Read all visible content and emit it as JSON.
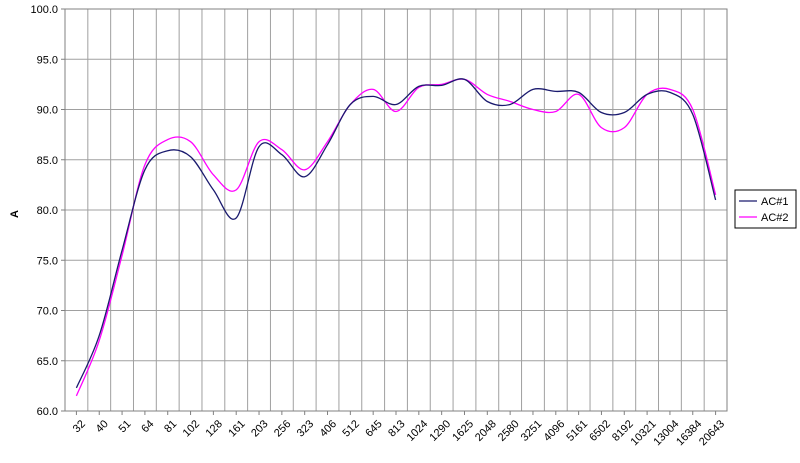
{
  "chart_data": {
    "type": "line",
    "title": "",
    "xlabel": "",
    "ylabel": "A",
    "ylim": [
      60.0,
      100.0
    ],
    "yticks": [
      "60.0",
      "65.0",
      "70.0",
      "75.0",
      "80.0",
      "85.0",
      "90.0",
      "95.0",
      "100.0"
    ],
    "grid": true,
    "legend_position": "right",
    "x": [
      "32",
      "40",
      "51",
      "64",
      "81",
      "102",
      "128",
      "161",
      "203",
      "256",
      "323",
      "406",
      "512",
      "645",
      "813",
      "1024",
      "1290",
      "1625",
      "2048",
      "2580",
      "3251",
      "4096",
      "5161",
      "6502",
      "8192",
      "10321",
      "13004",
      "16384",
      "20643"
    ],
    "series": [
      {
        "name": "AC#1",
        "color": "#1a1a6e",
        "values": [
          62.3,
          67.5,
          76.0,
          84.0,
          85.9,
          85.3,
          82.0,
          79.2,
          86.3,
          85.5,
          83.3,
          86.5,
          90.5,
          91.3,
          90.5,
          92.3,
          92.4,
          93.0,
          90.8,
          90.5,
          92.0,
          91.8,
          91.7,
          89.7,
          89.7,
          91.5,
          91.7,
          89.5,
          81.0
        ]
      },
      {
        "name": "AC#2",
        "color": "#ff00ff",
        "values": [
          61.5,
          67.0,
          75.5,
          84.5,
          87.0,
          86.8,
          83.5,
          82.0,
          86.8,
          86.0,
          84.0,
          86.8,
          90.5,
          92.0,
          89.8,
          92.2,
          92.5,
          93.0,
          91.5,
          90.8,
          90.0,
          89.8,
          91.5,
          88.2,
          88.2,
          91.5,
          92.0,
          90.0,
          81.5
        ]
      }
    ]
  }
}
